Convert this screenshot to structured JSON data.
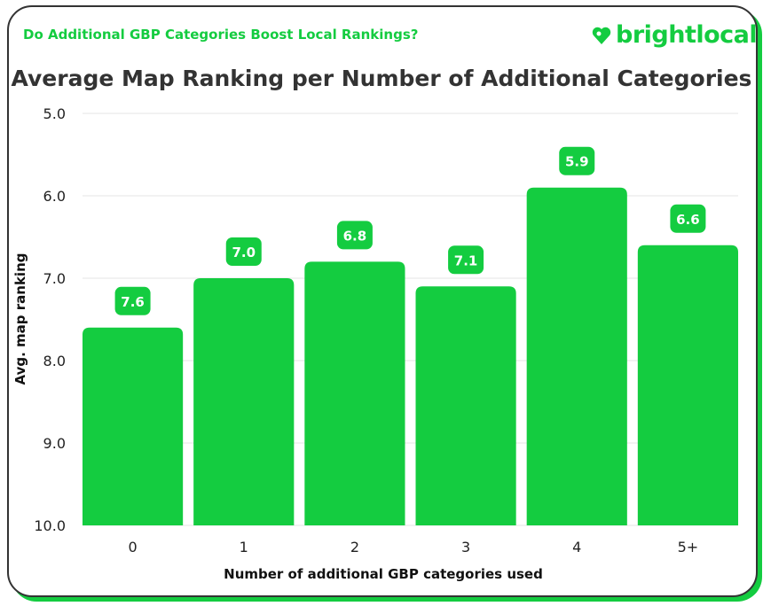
{
  "subtitle": "Do Additional GBP Categories Boost Local Rankings?",
  "logo": "brightlocal",
  "colors": {
    "bar": "#14cc40",
    "frame": "#333333",
    "accent": "#14cc40"
  },
  "chart_data": {
    "type": "bar",
    "title": "Average Map Ranking per Number of Additional Categories",
    "xlabel": "Number of additional GBP categories used",
    "ylabel": "Avg. map ranking",
    "categories": [
      "0",
      "1",
      "2",
      "3",
      "4",
      "5+"
    ],
    "values": [
      7.6,
      7.0,
      6.8,
      7.1,
      5.9,
      6.6
    ],
    "data_labels": [
      "7.6",
      "7.0",
      "6.8",
      "7.1",
      "5.9",
      "6.6"
    ],
    "ylim": [
      10,
      5
    ],
    "y_inverted": true,
    "yticks": [
      "5.0",
      "6.0",
      "7.0",
      "8.0",
      "9.0",
      "10.0"
    ],
    "grid": true
  }
}
